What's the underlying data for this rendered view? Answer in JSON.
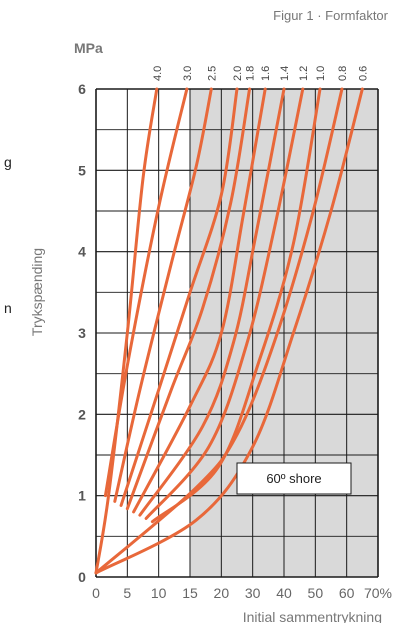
{
  "left_edge": {
    "text_a": "g",
    "text_b": "n"
  },
  "chart_data": {
    "type": "line",
    "title": "Figur 1 · Formfaktor",
    "unit_label": "MPa",
    "ylabel": "Trykspænding",
    "xlabel": "Initial sammentrykning",
    "annotation": "60º shore",
    "shaded_from_x": 15,
    "ylim": [
      0,
      6
    ],
    "xlim": [
      0,
      70
    ],
    "x_ticks": [
      0,
      5,
      10,
      15,
      20,
      30,
      40,
      50,
      60,
      70
    ],
    "x_tick_labels": [
      "0",
      "5",
      "10",
      "15",
      "20",
      "30",
      "40",
      "50",
      "60",
      "70%"
    ],
    "y_ticks": [
      0,
      1,
      2,
      3,
      4,
      5,
      6
    ],
    "grid": true,
    "colors": {
      "curve": "#e8683a",
      "shade": "#d9d9d9",
      "grid": "#1a1a1a",
      "text": "#666666"
    },
    "series": [
      {
        "name": "4.0",
        "points": [
          [
            0,
            0.05
          ],
          [
            2,
            1.0
          ],
          [
            5,
            3.0
          ],
          [
            7.5,
            4.9
          ],
          [
            9.7,
            6.0
          ]
        ]
      },
      {
        "name": "3.0",
        "points": [
          [
            1.5,
            1.0
          ],
          [
            5,
            2.6
          ],
          [
            10,
            4.55
          ],
          [
            14.5,
            6.0
          ]
        ]
      },
      {
        "name": "2.5",
        "points": [
          [
            3,
            0.93
          ],
          [
            7,
            2.3
          ],
          [
            12,
            3.85
          ],
          [
            16,
            5.05
          ],
          [
            18.4,
            6.0
          ]
        ]
      },
      {
        "name": "2.0",
        "points": [
          [
            4,
            0.88
          ],
          [
            10,
            2.3
          ],
          [
            15,
            3.5
          ],
          [
            20,
            4.7
          ],
          [
            25,
            6.0
          ]
        ]
      },
      {
        "name": "1.8",
        "points": [
          [
            5,
            0.84
          ],
          [
            12,
            2.3
          ],
          [
            17,
            3.3
          ],
          [
            23,
            4.6
          ],
          [
            29,
            6.0
          ]
        ]
      },
      {
        "name": "1.6",
        "points": [
          [
            6,
            0.8
          ],
          [
            15,
            2.1
          ],
          [
            20,
            3.0
          ],
          [
            27,
            4.45
          ],
          [
            34,
            6.0
          ]
        ]
      },
      {
        "name": "1.4",
        "points": [
          [
            7,
            0.76
          ],
          [
            17,
            1.85
          ],
          [
            24,
            2.9
          ],
          [
            31,
            4.2
          ],
          [
            40,
            6.0
          ]
        ]
      },
      {
        "name": "1.2",
        "points": [
          [
            8,
            0.72
          ],
          [
            18,
            1.6
          ],
          [
            28,
            2.85
          ],
          [
            37,
            4.3
          ],
          [
            46,
            6.0
          ]
        ]
      },
      {
        "name": "1.0",
        "points": [
          [
            9,
            0.68
          ],
          [
            19.5,
            1.35
          ],
          [
            32,
            2.65
          ],
          [
            43,
            4.1
          ],
          [
            51.5,
            6.0
          ]
        ]
      },
      {
        "name": "0.8",
        "points": [
          [
            0,
            0.05
          ],
          [
            16,
            1.1
          ],
          [
            25,
            1.75
          ],
          [
            37,
            2.9
          ],
          [
            49,
            4.45
          ],
          [
            58.5,
            6.0
          ]
        ]
      },
      {
        "name": "0.6",
        "points": [
          [
            0,
            0.05
          ],
          [
            16,
            0.7
          ],
          [
            30,
            1.6
          ],
          [
            43,
            3.0
          ],
          [
            55,
            4.5
          ],
          [
            65,
            6.0
          ]
        ]
      }
    ]
  }
}
